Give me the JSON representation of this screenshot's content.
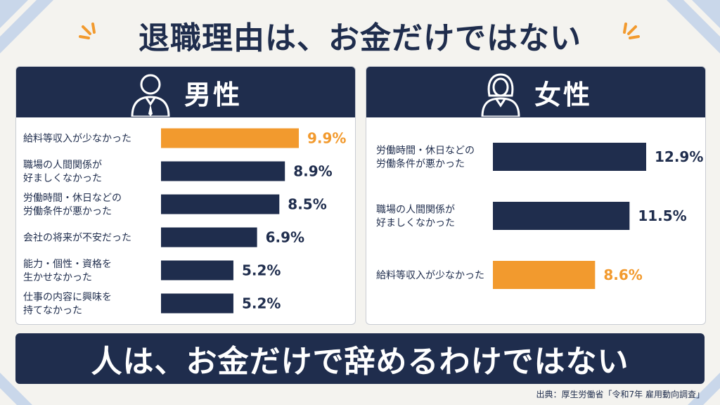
{
  "title": "退職理由は、お金だけではない",
  "colors": {
    "navy": "#1f2d4d",
    "orange": "#f29a2e",
    "panel_bg": "#ffffff",
    "page_bg": "#f4f3ef"
  },
  "icons": {
    "male_panel": "businessman-icon",
    "female_panel": "businesswoman-icon"
  },
  "chart_data": [
    {
      "type": "bar",
      "orientation": "horizontal",
      "title": "男性",
      "categories": [
        "給料等収入が少なかった",
        "職場の人間関係が\n好ましくなかった",
        "労働時間・休日などの\n労働条件が悪かった",
        "会社の将来が不安だった",
        "能力・個性・資格を\n生かせなかった",
        "仕事の内容に興味を\n持てなかった"
      ],
      "values": [
        9.9,
        8.9,
        8.5,
        6.9,
        5.2,
        5.2
      ],
      "value_labels": [
        "9.9%",
        "8.9%",
        "8.5%",
        "6.9%",
        "5.2%",
        "5.2%"
      ],
      "highlight_index": 0,
      "xlim": [
        0,
        9.9
      ]
    },
    {
      "type": "bar",
      "orientation": "horizontal",
      "title": "女性",
      "categories": [
        "労働時間・休日などの\n労働条件が悪かった",
        "職場の人間関係が\n好ましくなかった",
        "給料等収入が少なかった"
      ],
      "values": [
        12.9,
        11.5,
        8.6
      ],
      "value_labels": [
        "12.9%",
        "11.5%",
        "8.6%"
      ],
      "highlight_index": 2,
      "xlim": [
        0,
        12.9
      ]
    }
  ],
  "banner": "人は、お金だけで辞めるわけではない",
  "source": "出典：厚生労働省「令和7年 雇用動向調査」"
}
